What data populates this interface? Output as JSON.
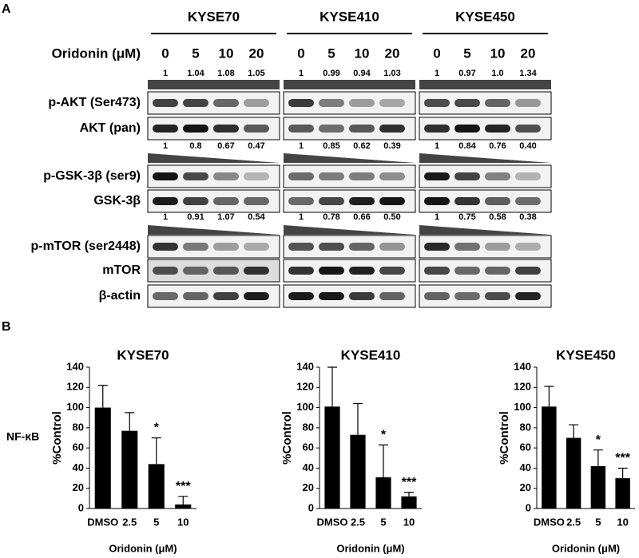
{
  "panel_a": {
    "label": "A",
    "treatment_label": "Oridonin (μM)",
    "groups": [
      "KYSE70",
      "KYSE410",
      "KYSE450"
    ],
    "doses": [
      [
        "0",
        "5",
        "10",
        "20"
      ],
      [
        "0",
        "5",
        "10",
        "20"
      ],
      [
        "0",
        "5",
        "10",
        "20"
      ]
    ],
    "blots": [
      "p-AKT (Ser473)",
      "AKT (pan)",
      "p-GSK-3β (ser9)",
      "GSK-3β",
      "p-mTOR (ser2448)",
      "mTOR",
      "β-actin"
    ],
    "ratios": [
      [
        [
          "1",
          "1.04",
          "1.08",
          "1.05"
        ],
        [
          "1",
          "0.99",
          "0.94",
          "1.03"
        ],
        [
          "1",
          "0.97",
          "1.0",
          "1.34"
        ]
      ],
      [
        [
          "1",
          "0.8",
          "0.67",
          "0.47"
        ],
        [
          "1",
          "0.85",
          "0.62",
          "0.39"
        ],
        [
          "1",
          "0.84",
          "0.76",
          "0.40"
        ]
      ],
      [
        [
          "1",
          "0.91",
          "1.07",
          "0.54"
        ],
        [
          "1",
          "0.78",
          "0.66",
          "0.50"
        ],
        [
          "1",
          "0.75",
          "0.58",
          "0.38"
        ]
      ]
    ]
  },
  "panel_b": {
    "label": "B",
    "row_label": "NF-κB"
  },
  "chart_data": [
    {
      "type": "bar",
      "title": "KYSE70",
      "ylabel": "%Control",
      "xlabel": "Oridonin (μM)",
      "color": "#000000",
      "categories": [
        "DMSO",
        "2.5",
        "5",
        "10"
      ],
      "values": [
        100,
        77,
        44,
        4
      ],
      "errors": [
        22,
        18,
        26,
        8
      ],
      "annotations": [
        null,
        null,
        "*",
        "***"
      ],
      "ylim": [
        0,
        140
      ],
      "yticks": [
        0,
        20,
        40,
        60,
        80,
        100,
        120,
        140
      ]
    },
    {
      "type": "bar",
      "title": "KYSE410",
      "ylabel": "%Control",
      "xlabel": "Oridonin (μM)",
      "color": "#000000",
      "categories": [
        "DMSO",
        "2.5",
        "5",
        "10"
      ],
      "values": [
        101,
        73,
        31,
        12
      ],
      "errors": [
        39,
        31,
        32,
        4
      ],
      "annotations": [
        null,
        null,
        "*",
        "***"
      ],
      "ylim": [
        0,
        140
      ],
      "yticks": [
        0,
        20,
        40,
        60,
        80,
        100,
        120,
        140
      ]
    },
    {
      "type": "bar",
      "title": "KYSE450",
      "ylabel": "%Control",
      "xlabel": "Oridonin (μM)",
      "color": "#000000",
      "categories": [
        "DMSO",
        "2.5",
        "5",
        "10"
      ],
      "values": [
        101,
        70,
        42,
        30
      ],
      "errors": [
        20,
        13,
        16,
        10
      ],
      "annotations": [
        null,
        null,
        "*",
        "***"
      ],
      "ylim": [
        0,
        140
      ],
      "yticks": [
        0,
        20,
        40,
        60,
        80,
        100,
        120,
        140
      ]
    }
  ]
}
